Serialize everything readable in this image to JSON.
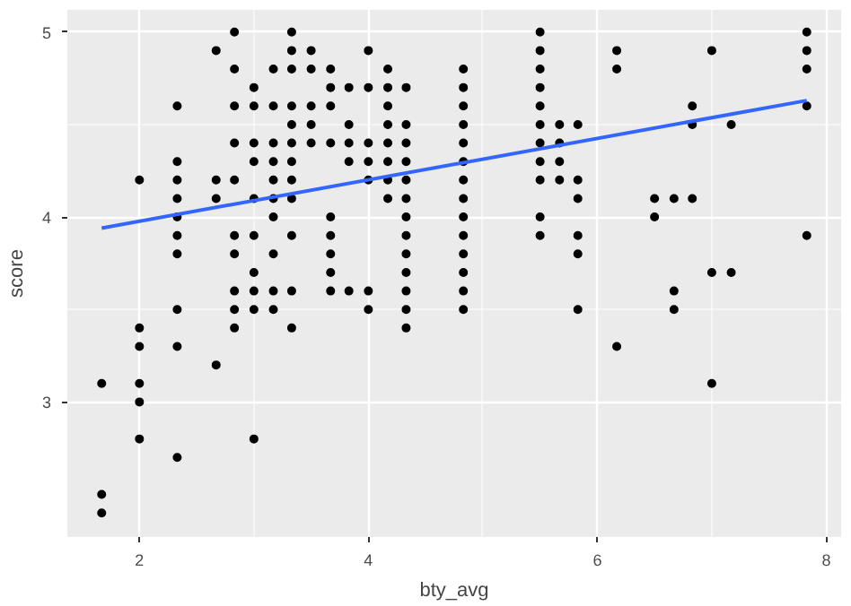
{
  "chart_data": {
    "type": "scatter",
    "xlabel": "bty_avg",
    "ylabel": "score",
    "xlim": [
      1.37,
      8.13
    ],
    "ylim": [
      2.27,
      5.12
    ],
    "xticks": [
      2,
      4,
      6,
      8
    ],
    "yticks": [
      3,
      4,
      5
    ],
    "grid": true,
    "series": [
      {
        "color": "#000000",
        "marker": "circle",
        "x": [
          1.67,
          1.67,
          1.67,
          2,
          2,
          2,
          2,
          2,
          2,
          2.33,
          2.33,
          2.33,
          2.33,
          2.33,
          2.33,
          2.33,
          2.33,
          2.33,
          2.33,
          2.67,
          2.67,
          2.67,
          2.67,
          2.83,
          2.83,
          2.83,
          2.83,
          2.83,
          2.83,
          2.83,
          2.83,
          2.83,
          2.83,
          3,
          3,
          3,
          3,
          3,
          3,
          3,
          3,
          3,
          3,
          3.17,
          3.17,
          3.17,
          3.17,
          3.17,
          3.17,
          3.17,
          3.17,
          3.17,
          3.17,
          3.33,
          3.33,
          3.33,
          3.33,
          3.33,
          3.33,
          3.33,
          3.33,
          3.33,
          3.33,
          3.33,
          3.33,
          3.5,
          3.5,
          3.5,
          3.5,
          3.5,
          3.67,
          3.67,
          3.67,
          3.67,
          3.67,
          3.67,
          3.67,
          3.67,
          3.67,
          3.83,
          3.83,
          3.83,
          3.83,
          3.83,
          4,
          4,
          4,
          4,
          4,
          4,
          4,
          4.17,
          4.17,
          4.17,
          4.17,
          4.17,
          4.17,
          4.17,
          4.17,
          4.33,
          4.33,
          4.33,
          4.33,
          4.33,
          4.33,
          4.33,
          4.33,
          4.33,
          4.33,
          4.33,
          4.33,
          4.33,
          4.83,
          4.83,
          4.83,
          4.83,
          4.83,
          4.83,
          4.83,
          4.83,
          4.83,
          4.83,
          4.83,
          4.83,
          4.83,
          4.83,
          5.5,
          5.5,
          5.5,
          5.5,
          5.5,
          5.5,
          5.5,
          5.5,
          5.5,
          5.5,
          5.5,
          5.67,
          5.67,
          5.67,
          5.67,
          5.83,
          5.83,
          5.83,
          5.83,
          5.83,
          5.83,
          6.17,
          6.17,
          6.17,
          6.5,
          6.5,
          6.67,
          6.67,
          6.67,
          6.83,
          6.83,
          6.83,
          7,
          7,
          7,
          7.17,
          7.17,
          7.83,
          7.83,
          7.83,
          7.83,
          7.83
        ],
        "values": [
          3.1,
          2.5,
          2.4,
          4.2,
          3.4,
          3.3,
          3.1,
          3.0,
          2.8,
          4.6,
          4.3,
          4.2,
          4.1,
          4.0,
          3.9,
          3.8,
          3.5,
          3.3,
          2.7,
          4.9,
          4.2,
          4.1,
          3.2,
          5.0,
          4.8,
          4.6,
          4.4,
          4.2,
          3.9,
          3.8,
          3.6,
          3.5,
          3.4,
          4.7,
          4.6,
          4.4,
          4.3,
          4.1,
          3.9,
          3.7,
          3.6,
          3.5,
          2.8,
          4.8,
          4.6,
          4.4,
          4.3,
          4.2,
          4.1,
          4.0,
          3.8,
          3.6,
          3.5,
          5.0,
          4.9,
          4.8,
          4.6,
          4.5,
          4.4,
          4.3,
          4.2,
          4.1,
          3.9,
          3.6,
          3.4,
          4.9,
          4.8,
          4.6,
          4.5,
          4.4,
          4.8,
          4.7,
          4.6,
          4.4,
          4.0,
          3.9,
          3.8,
          3.7,
          3.6,
          4.7,
          4.5,
          4.4,
          4.3,
          3.6,
          4.9,
          4.7,
          4.4,
          4.3,
          4.2,
          3.6,
          3.5,
          4.8,
          4.7,
          4.6,
          4.5,
          4.4,
          4.3,
          4.2,
          4.1,
          4.7,
          4.5,
          4.4,
          4.3,
          4.2,
          4.1,
          4.0,
          3.9,
          3.8,
          3.7,
          3.6,
          3.5,
          3.4,
          4.8,
          4.7,
          4.6,
          4.5,
          4.4,
          4.3,
          4.2,
          4.1,
          4.0,
          3.9,
          3.8,
          3.7,
          3.6,
          3.5,
          5.0,
          4.9,
          4.8,
          4.7,
          4.6,
          4.5,
          4.4,
          4.3,
          4.2,
          4.0,
          3.9,
          4.5,
          4.4,
          4.3,
          4.2,
          4.5,
          4.2,
          4.1,
          3.9,
          3.8,
          3.5,
          4.9,
          4.8,
          3.3,
          4.1,
          4.0,
          4.1,
          3.6,
          3.5,
          4.6,
          4.5,
          4.1,
          4.9,
          3.7,
          3.1,
          4.5,
          3.7,
          5.0,
          4.9,
          4.8,
          4.6,
          3.9
        ]
      },
      {
        "type": "line",
        "color": "#3366ff",
        "x": [
          1.67,
          7.83
        ],
        "values": [
          3.94,
          4.63
        ]
      }
    ]
  }
}
